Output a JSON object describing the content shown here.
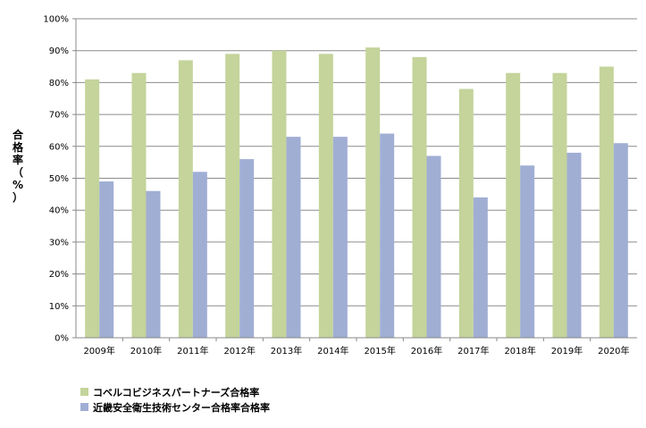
{
  "chart_data": {
    "type": "bar",
    "title": "",
    "xlabel": "",
    "ylabel": "合格率（%）",
    "ylim": [
      0,
      100
    ],
    "y_ticks": [
      "0%",
      "10%",
      "20%",
      "30%",
      "40%",
      "50%",
      "60%",
      "70%",
      "80%",
      "90%",
      "100%"
    ],
    "categories": [
      "2009年",
      "2010年",
      "2011年",
      "2012年",
      "2013年",
      "2014年",
      "2015年",
      "2016年",
      "2017年",
      "2018年",
      "2019年",
      "2020年"
    ],
    "grid": true,
    "legend_placement": "bottom-left",
    "series": [
      {
        "name": "コベルコビジネスパートナーズ合格率",
        "color": "#c4d49b",
        "values": [
          81,
          83,
          87,
          89,
          90,
          89,
          91,
          88,
          78,
          83,
          83,
          85
        ]
      },
      {
        "name": "近畿安全衛生技術センター合格率合格率",
        "color": "#a0aed4",
        "values": [
          49,
          46,
          52,
          56,
          63,
          63,
          64,
          57,
          44,
          54,
          58,
          61
        ]
      }
    ]
  }
}
